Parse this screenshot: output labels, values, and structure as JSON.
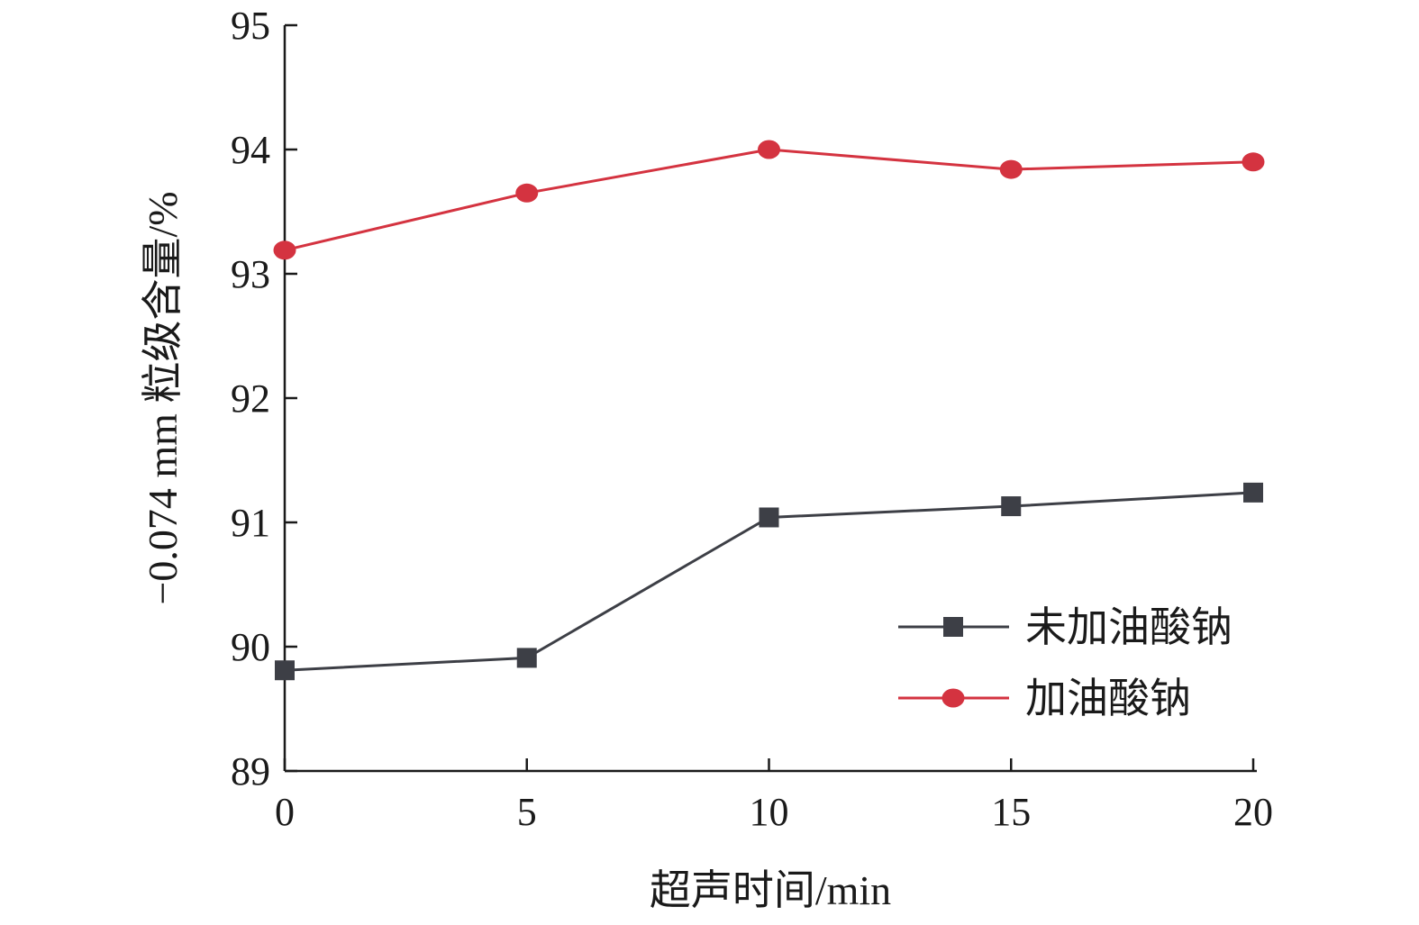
{
  "chart_data": {
    "type": "line",
    "title": "",
    "xlabel": "超声时间/min",
    "ylabel": "−0.074 mm 粒级含量/%",
    "x": [
      0,
      5,
      10,
      15,
      20
    ],
    "x_ticks": [
      "0",
      "5",
      "10",
      "15",
      "20"
    ],
    "y_ticks": [
      "89",
      "90",
      "91",
      "92",
      "93",
      "94",
      "95"
    ],
    "xlim": [
      0,
      20
    ],
    "ylim": [
      89,
      95
    ],
    "grid": false,
    "legend_position": "bottom-right",
    "series": [
      {
        "name": "未加油酸钠",
        "values": [
          89.81,
          89.91,
          91.04,
          91.13,
          91.24
        ],
        "color": "#3d3f46",
        "marker": "square"
      },
      {
        "name": "加油酸钠",
        "values": [
          93.19,
          93.65,
          94.0,
          93.84,
          93.9
        ],
        "color": "#d43340",
        "marker": "circle"
      }
    ]
  }
}
